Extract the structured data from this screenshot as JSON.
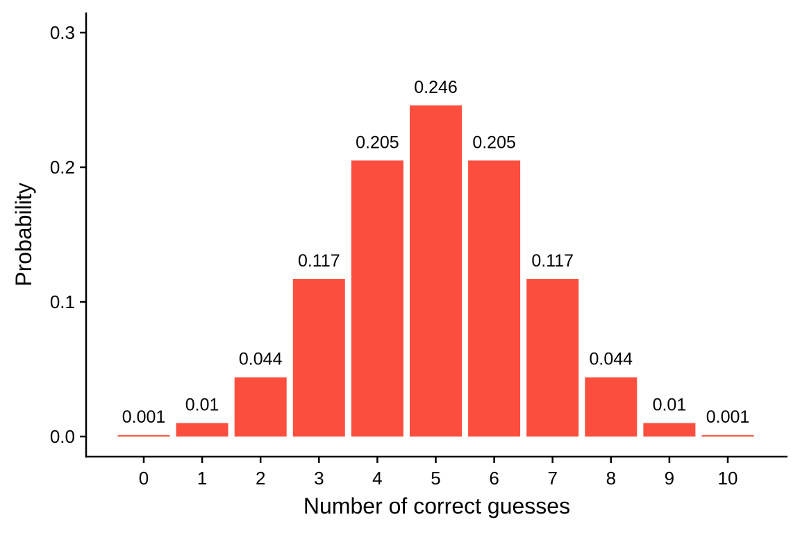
{
  "chart_data": {
    "type": "bar",
    "title": "",
    "xlabel": "Number of correct guesses",
    "ylabel": "Probability",
    "categories": [
      "0",
      "1",
      "2",
      "3",
      "4",
      "5",
      "6",
      "7",
      "8",
      "9",
      "10"
    ],
    "values": [
      0.001,
      0.01,
      0.044,
      0.117,
      0.205,
      0.246,
      0.205,
      0.117,
      0.044,
      0.01,
      0.001
    ],
    "data_labels": [
      "0.001",
      "0.01",
      "0.044",
      "0.117",
      "0.205",
      "0.246",
      "0.205",
      "0.117",
      "0.044",
      "0.01",
      "0.001"
    ],
    "ylim": [
      -0.015,
      0.315
    ],
    "yticks": [
      0.0,
      0.1,
      0.2,
      0.3
    ],
    "ytick_labels": [
      "0.0",
      "0.1",
      "0.2",
      "0.3"
    ],
    "grid": false,
    "legend": "none",
    "bar_color": "#FC4E3E"
  }
}
